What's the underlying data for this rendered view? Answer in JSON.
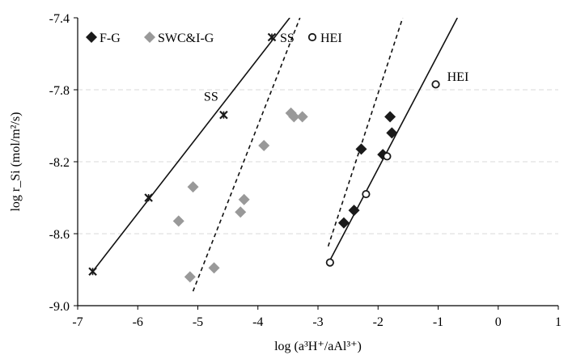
{
  "chart_data": {
    "type": "scatter",
    "xlabel": "log (a³H⁺/aAl³⁺)",
    "ylabel": "log r_Si (mol/m²/s)",
    "xlim": [
      -7,
      1
    ],
    "ylim": [
      -9.0,
      -7.4
    ],
    "xticks": [
      "-7",
      "-6",
      "-5",
      "-4",
      "-3",
      "-2",
      "-1",
      "0",
      "1"
    ],
    "yticks": [
      "-7.4",
      "-7.8",
      "-8.2",
      "-8.6",
      "-9.0"
    ],
    "grid": "horizontal dashed",
    "legend_position": "top-left",
    "series": [
      {
        "name": "F-G",
        "marker": "diamond-filled",
        "color": "#1a1a1a",
        "points": [
          [
            -2.57,
            -8.54
          ],
          [
            -2.4,
            -8.47
          ],
          [
            -2.28,
            -8.13
          ],
          [
            -1.92,
            -8.16
          ],
          [
            -1.8,
            -7.95
          ],
          [
            -1.77,
            -8.04
          ]
        ]
      },
      {
        "name": "SWC&I-G",
        "marker": "diamond-filled",
        "color": "#999999",
        "points": [
          [
            -5.32,
            -8.53
          ],
          [
            -5.08,
            -8.34
          ],
          [
            -5.13,
            -8.84
          ],
          [
            -4.73,
            -8.79
          ],
          [
            -4.29,
            -8.48
          ],
          [
            -4.23,
            -8.41
          ],
          [
            -3.9,
            -8.11
          ],
          [
            -3.45,
            -7.93
          ],
          [
            -3.4,
            -7.95
          ],
          [
            -3.26,
            -7.95
          ]
        ]
      },
      {
        "name": "SS",
        "marker": "x-star",
        "color": "#1a1a1a",
        "points": [
          [
            -6.75,
            -8.81
          ],
          [
            -5.82,
            -8.4
          ],
          [
            -4.57,
            -7.94
          ]
        ]
      },
      {
        "name": "HEI",
        "marker": "circle-open",
        "color": "#1a1a1a",
        "points": [
          [
            -2.8,
            -8.76
          ],
          [
            -2.2,
            -8.38
          ],
          [
            -1.85,
            -8.17
          ],
          [
            -1.04,
            -7.77
          ]
        ]
      }
    ],
    "fit_lines": [
      {
        "series": "SS",
        "style": "solid",
        "x": [
          -6.75,
          -3.47
        ],
        "y": [
          -8.81,
          -7.4
        ]
      },
      {
        "series": "SWC&I-G",
        "style": "dashed",
        "x": [
          -5.08,
          -3.3
        ],
        "y": [
          -8.92,
          -7.4
        ]
      },
      {
        "series": "F-G",
        "style": "dashed",
        "x": [
          -2.83,
          -1.59
        ],
        "y": [
          -8.67,
          -7.4
        ]
      },
      {
        "series": "HEI",
        "style": "solid",
        "x": [
          -2.82,
          -0.68
        ],
        "y": [
          -8.76,
          -7.4
        ]
      }
    ],
    "annotations": [
      {
        "text": "SS",
        "x": -4.9,
        "y": -7.86
      },
      {
        "text": "HEI",
        "x": -0.85,
        "y": -7.75
      }
    ]
  }
}
